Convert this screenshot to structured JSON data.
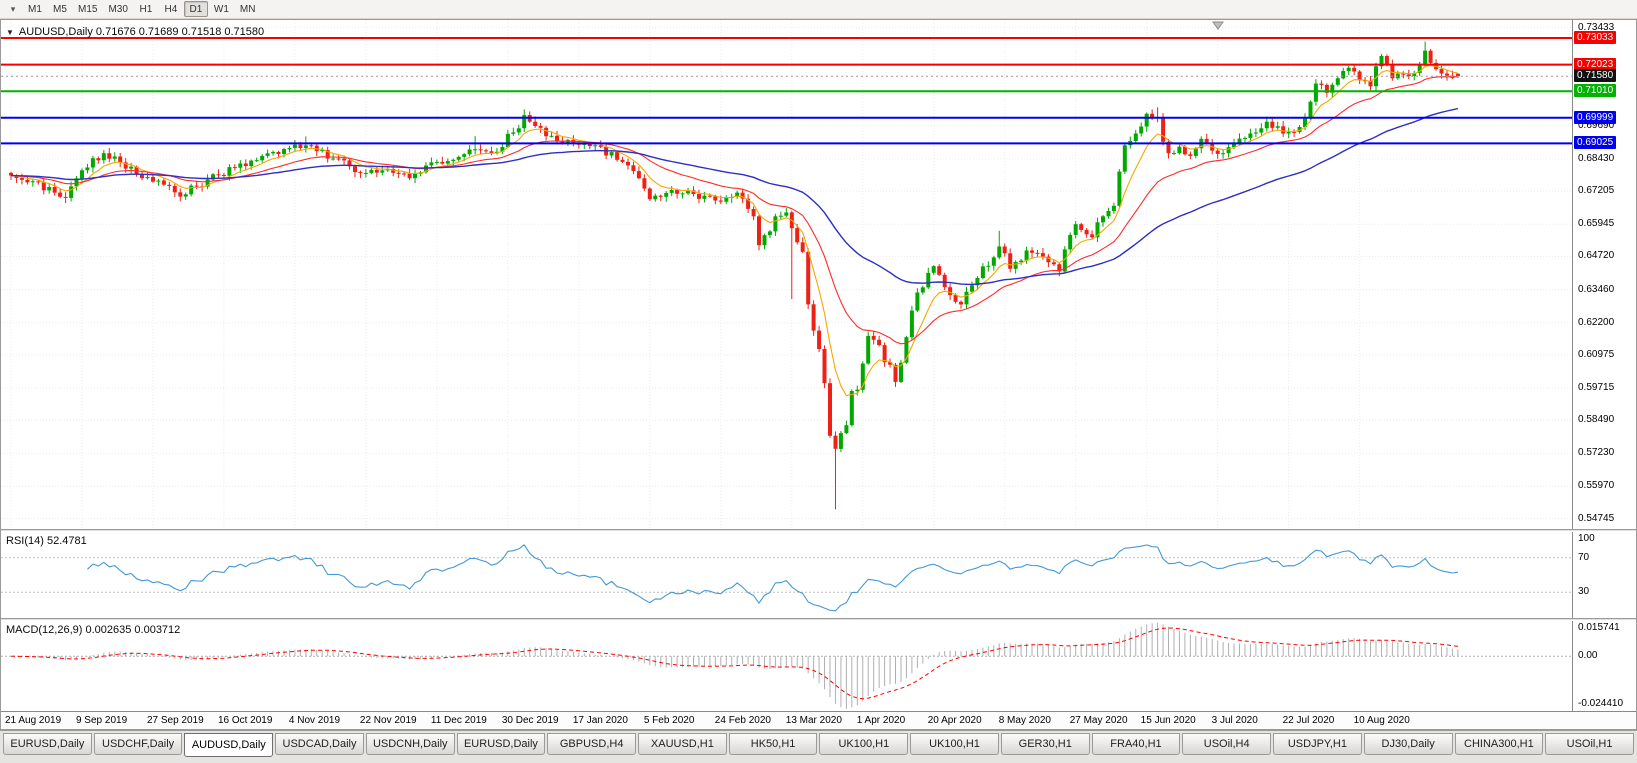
{
  "icons": {
    "dropdown_caret": "▾",
    "collapse": "▼"
  },
  "toolbar": {
    "timeframes": [
      "M1",
      "M5",
      "M15",
      "M30",
      "H1",
      "H4",
      "D1",
      "W1",
      "MN"
    ],
    "active_timeframe": "D1"
  },
  "chart": {
    "symbol": "AUDUSD",
    "period": "Daily",
    "header": "AUDUSD,Daily 0.71676 0.71689 0.71518 0.71580"
  },
  "rsi_panel": {
    "label": "RSI(14) 52.4781",
    "ticks": [
      {
        "label": "100",
        "value": 100
      },
      {
        "label": "70",
        "value": 70
      },
      {
        "label": "30",
        "value": 30
      }
    ]
  },
  "macd_panel": {
    "label": "MACD(12,26,9) 0.002635 0.003712",
    "ticks": [
      {
        "label": "0.015741",
        "value": 0.015741
      },
      {
        "label": "0.00",
        "value": 0
      },
      {
        "label": "-0.024410",
        "value": -0.02441
      }
    ]
  },
  "tabs": {
    "active_index": 2,
    "items": [
      "EURUSD,Daily",
      "USDCHF,Daily",
      "AUDUSD,Daily",
      "USDCAD,Daily",
      "USDCNH,Daily",
      "EURUSD,Daily",
      "GBPUSD,H4",
      "XAUUSD,H1",
      "HK50,H1",
      "UK100,H1",
      "UK100,H1",
      "GER30,H1",
      "FRA40,H1",
      "USOil,H4",
      "USDJPY,H1",
      "DJ30,Daily",
      "CHINA300,H1",
      "USOil,H1"
    ]
  },
  "chart_data": {
    "type": "candlestick",
    "title": "AUDUSD,Daily",
    "quote": {
      "open": 0.71676,
      "high": 0.71689,
      "low": 0.71518,
      "close": 0.7158
    },
    "bar_count": 266,
    "y_range": [
      0.5435,
      0.7372
    ],
    "y_ticks": [
      0.73433,
      0.6969,
      0.6843,
      0.67205,
      0.65945,
      0.6472,
      0.6346,
      0.622,
      0.60975,
      0.59715,
      0.5849,
      0.5723,
      0.5597,
      0.54745
    ],
    "hlines": [
      {
        "value": 0.73033,
        "label": "0.73033",
        "color": "#F60000"
      },
      {
        "value": 0.72023,
        "label": "0.72023",
        "color": "#F60000"
      },
      {
        "value": 0.7101,
        "label": "0.71010",
        "color": "#00B300"
      },
      {
        "value": 0.69999,
        "label": "0.69999",
        "color": "#0000F0"
      },
      {
        "value": 0.69025,
        "label": "0.69025",
        "color": "#0000F0"
      }
    ],
    "current_price": {
      "value": 0.7158,
      "label": "0.71580"
    },
    "colors": {
      "up": "#00A800",
      "down": "#EE2116",
      "ma_fast": "#F5A800",
      "ma_mid": "#FF2A2A",
      "ma_slow": "#2F2FC2",
      "rsi": "#4398D8",
      "macd_hist": "#AFAFAF",
      "macd_signal": "#FF0000"
    },
    "moving_averages": [
      {
        "name": "ma-fast",
        "period": 7
      },
      {
        "name": "ma-mid",
        "period": 21
      },
      {
        "name": "ma-slow",
        "period": 55
      }
    ],
    "rsi": {
      "period": 14,
      "value": 52.4781,
      "range": [
        0,
        100
      ],
      "levels": [
        70,
        30
      ]
    },
    "macd": {
      "fast": 12,
      "slow": 26,
      "signal": 9,
      "value": 0.002635,
      "signal_value": 0.003712,
      "range": [
        -0.02441,
        0.015741
      ]
    },
    "x_labels": [
      {
        "bar": 0,
        "text": "21 Aug 2019"
      },
      {
        "bar": 13,
        "text": "9 Sep 2019"
      },
      {
        "bar": 26,
        "text": "27 Sep 2019"
      },
      {
        "bar": 39,
        "text": "16 Oct 2019"
      },
      {
        "bar": 52,
        "text": "4 Nov 2019"
      },
      {
        "bar": 65,
        "text": "22 Nov 2019"
      },
      {
        "bar": 78,
        "text": "11 Dec 2019"
      },
      {
        "bar": 91,
        "text": "30 Dec 2019"
      },
      {
        "bar": 104,
        "text": "17 Jan 2020"
      },
      {
        "bar": 117,
        "text": "5 Feb 2020"
      },
      {
        "bar": 130,
        "text": "24 Feb 2020"
      },
      {
        "bar": 143,
        "text": "13 Mar 2020"
      },
      {
        "bar": 156,
        "text": "1 Apr 2020"
      },
      {
        "bar": 169,
        "text": "20 Apr 2020"
      },
      {
        "bar": 182,
        "text": "8 May 2020"
      },
      {
        "bar": 195,
        "text": "27 May 2020"
      },
      {
        "bar": 208,
        "text": "15 Jun 2020"
      },
      {
        "bar": 221,
        "text": "3 Jul 2020"
      },
      {
        "bar": 234,
        "text": "22 Jul 2020"
      },
      {
        "bar": 247,
        "text": "10 Aug 2020"
      }
    ],
    "price_waypoints": [
      [
        0,
        0.678
      ],
      [
        4,
        0.6758
      ],
      [
        8,
        0.6715
      ],
      [
        10,
        0.6695
      ],
      [
        13,
        0.68
      ],
      [
        17,
        0.6865
      ],
      [
        20,
        0.683
      ],
      [
        24,
        0.677
      ],
      [
        28,
        0.6745
      ],
      [
        31,
        0.67
      ],
      [
        36,
        0.6765
      ],
      [
        41,
        0.681
      ],
      [
        46,
        0.6855
      ],
      [
        51,
        0.6885
      ],
      [
        54,
        0.6895,
        0.6929,
        null
      ],
      [
        59,
        0.6845
      ],
      [
        64,
        0.679
      ],
      [
        69,
        0.6805
      ],
      [
        73,
        0.677
      ],
      [
        77,
        0.683
      ],
      [
        81,
        0.684
      ],
      [
        85,
        0.688,
        0.693,
        null
      ],
      [
        88,
        0.6865
      ],
      [
        93,
        0.696
      ],
      [
        94,
        0.701,
        0.7032,
        null
      ],
      [
        95,
        0.6985
      ],
      [
        98,
        0.693
      ],
      [
        103,
        0.6905
      ],
      [
        107,
        0.6895
      ],
      [
        111,
        0.684
      ],
      [
        115,
        0.677
      ],
      [
        117,
        0.669
      ],
      [
        121,
        0.6725
      ],
      [
        125,
        0.671
      ],
      [
        129,
        0.6685
      ],
      [
        133,
        0.6715
      ],
      [
        136,
        0.6625
      ],
      [
        137,
        0.6515
      ],
      [
        140,
        0.6625
      ],
      [
        142,
        0.664
      ],
      [
        143,
        0.658,
        null,
        0.631
      ],
      [
        145,
        0.649
      ],
      [
        146,
        0.629
      ],
      [
        147,
        0.619
      ],
      [
        148,
        0.612
      ],
      [
        149,
        0.599
      ],
      [
        150,
        0.579
      ],
      [
        151,
        0.574,
        null,
        0.551
      ],
      [
        152,
        0.58
      ],
      [
        153,
        0.583
      ],
      [
        154,
        0.596
      ],
      [
        155,
        0.5965
      ],
      [
        156,
        0.6065
      ],
      [
        157,
        0.617
      ],
      [
        158,
        0.6155
      ],
      [
        159,
        0.6135
      ],
      [
        160,
        0.607
      ],
      [
        161,
        0.606
      ],
      [
        162,
        0.5995
      ],
      [
        164,
        0.6165
      ],
      [
        166,
        0.6335
      ],
      [
        169,
        0.6435
      ],
      [
        171,
        0.6355
      ],
      [
        174,
        0.629
      ],
      [
        177,
        0.639
      ],
      [
        181,
        0.651,
        0.657,
        null
      ],
      [
        183,
        0.6425
      ],
      [
        186,
        0.6495
      ],
      [
        188,
        0.6485
      ],
      [
        190,
        0.645
      ],
      [
        192,
        0.6415
      ],
      [
        195,
        0.6595
      ],
      [
        198,
        0.6545
      ],
      [
        200,
        0.6625
      ],
      [
        202,
        0.6665
      ],
      [
        203,
        0.6795
      ],
      [
        204,
        0.6895
      ],
      [
        206,
        0.694
      ],
      [
        208,
        0.7015
      ],
      [
        210,
        0.7,
        0.704,
        null
      ],
      [
        212,
        0.6865
      ],
      [
        214,
        0.689
      ],
      [
        216,
        0.6855
      ],
      [
        218,
        0.692
      ],
      [
        220,
        0.6875
      ],
      [
        222,
        0.6865
      ],
      [
        224,
        0.6905
      ],
      [
        227,
        0.694
      ],
      [
        230,
        0.6985
      ],
      [
        233,
        0.694
      ],
      [
        236,
        0.6965
      ],
      [
        239,
        0.713,
        0.7147,
        null
      ],
      [
        241,
        0.7095
      ],
      [
        243,
        0.715
      ],
      [
        245,
        0.719
      ],
      [
        247,
        0.7143
      ],
      [
        249,
        0.712
      ],
      [
        251,
        0.7235,
        0.7243,
        null
      ],
      [
        253,
        0.715
      ],
      [
        255,
        0.7165
      ],
      [
        257,
        0.717
      ],
      [
        259,
        0.7255,
        0.729,
        null
      ],
      [
        261,
        0.7185
      ],
      [
        263,
        0.716
      ],
      [
        265,
        0.7158
      ]
    ]
  }
}
